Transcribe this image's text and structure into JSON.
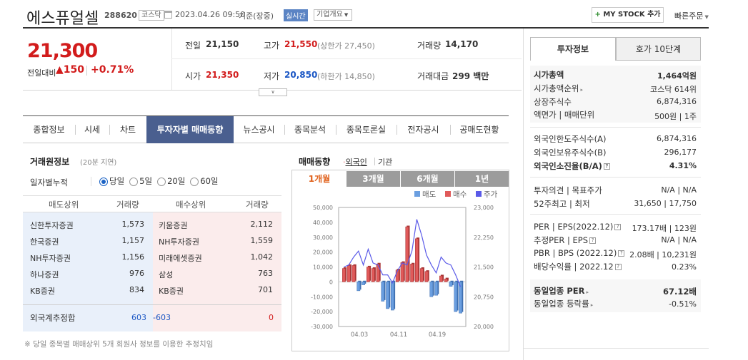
{
  "header": {
    "stock_name": "에스퓨얼셀",
    "code": "288620",
    "market": "코스닥",
    "datetime": "2023.04.26 09:50",
    "basis": "기준(장중)",
    "realtime": "실시간",
    "company_overview": "기업개요",
    "my_stock_label": "MY STOCK 추가",
    "quick_order": "빠른주문"
  },
  "price": {
    "current": "21,300",
    "change_label": "전일대비",
    "change_value": "150",
    "change_pct": "+0.71%",
    "prev_label": "전일",
    "prev": "21,150",
    "high_label": "고가",
    "high": "21,550",
    "upper_limit": "(상한가 27,450)",
    "volume_label": "거래량",
    "volume": "14,170",
    "open_label": "시가",
    "open": "21,350",
    "low_label": "저가",
    "low": "20,850",
    "lower_limit": "(하한가 14,850)",
    "amount_label": "거래대금",
    "amount": "299 백만"
  },
  "nav": {
    "items": [
      "종합정보",
      "시세",
      "차트",
      "투자자별 매매동향",
      "뉴스공시",
      "종목분석",
      "종목토론실",
      "전자공시",
      "공매도현황"
    ],
    "active_index": 3
  },
  "trader": {
    "title": "거래원정보",
    "delay": "(20분 지연)",
    "period_label": "일자별누적",
    "options": [
      "당일",
      "5일",
      "20일",
      "60일"
    ],
    "selected": 0,
    "col_sell": "매도상위",
    "col_sell_vol": "거래량",
    "col_buy": "매수상위",
    "col_buy_vol": "거래량",
    "rows": [
      {
        "sell": "신한투자증권",
        "sell_vol": "1,573",
        "buy": "키움증권",
        "buy_vol": "2,112"
      },
      {
        "sell": "한국증권",
        "sell_vol": "1,157",
        "buy": "NH투자증권",
        "buy_vol": "1,559"
      },
      {
        "sell": "NH투자증권",
        "sell_vol": "1,156",
        "buy": "미래에셋증권",
        "buy_vol": "1,042"
      },
      {
        "sell": "하나증권",
        "sell_vol": "976",
        "buy": "삼성",
        "buy_vol": "763"
      },
      {
        "sell": "KB증권",
        "sell_vol": "834",
        "buy": "KB증권",
        "buy_vol": "701"
      }
    ],
    "foreign_label": "외국계추정합",
    "foreign_sell": "603",
    "foreign_net": "-603",
    "foreign_buy": "0",
    "footnote": "※ 당일 종목별 매매상위 5개 회원사 정보를 이용한 추정치임"
  },
  "flow": {
    "title": "매매동향",
    "opt_foreign": "외국인",
    "opt_inst": "기관",
    "tabs": [
      "1개월",
      "3개월",
      "6개월",
      "1년"
    ],
    "active_tab": 0
  },
  "chart_data": {
    "type": "bar",
    "legend": [
      "매도",
      "매수",
      "주가"
    ],
    "colors": {
      "sell": "#6b9fe0",
      "buy": "#e05a5a",
      "price": "#5a5ae8"
    },
    "x_ticks": [
      "04.03",
      "04.11",
      "04.19"
    ],
    "left_axis": {
      "ticks": [
        "50,000",
        "40,000",
        "30,000",
        "20,000",
        "10,000",
        "0",
        "-10,000",
        "-20,000",
        "-30,000"
      ],
      "range": [
        -30000,
        50000
      ]
    },
    "right_axis": {
      "ticks": [
        "23,000",
        "22,250",
        "21,500",
        "20,750",
        "20,000"
      ],
      "range": [
        20000,
        23000
      ]
    },
    "net_values": [
      9000,
      11000,
      11000,
      -6000,
      -2000,
      10000,
      9000,
      12000,
      -13000,
      -18000,
      -19000,
      8000,
      13000,
      37000,
      12000,
      29000,
      9000,
      7000,
      -10000,
      -9000,
      4000,
      2000,
      -3000,
      -20000,
      -21000
    ],
    "price_values": [
      21500,
      21550,
      21750,
      21900,
      21550,
      21950,
      21600,
      21550,
      21300,
      21300,
      21100,
      21400,
      21600,
      21550,
      21900,
      22700,
      22300,
      21800,
      21550,
      21350,
      21750,
      21600,
      21550,
      21300,
      21000
    ]
  },
  "right_panel": {
    "tabs": [
      "투자정보",
      "호가 10단계"
    ],
    "market_cap_label": "시가총액",
    "market_cap": "1,464억원",
    "rank_label": "시가총액순위",
    "rank": "코스닥 614위",
    "shares_label": "상장주식수",
    "shares": "6,874,316",
    "face_label": "액면가 | 매매단위",
    "face": "500원 | 1주",
    "foreign_limit_label": "외국인한도주식수(A)",
    "foreign_limit": "6,874,316",
    "foreign_hold_label": "외국인보유주식수(B)",
    "foreign_hold": "296,177",
    "foreign_ratio_label": "외국인소진율(B/A)",
    "foreign_ratio": "4.31%",
    "opinion_label": "투자의견 | 목표주가",
    "opinion": "N/A | N/A",
    "week52_label": "52주최고 | 최저",
    "week52": "31,650 | 17,750",
    "per_label": "PER | EPS(2022.12)",
    "per": "173.17배 | 123원",
    "est_per_label": "추정PER | EPS",
    "est_per": "N/A | N/A",
    "pbr_label": "PBR | BPS (2022.12)",
    "pbr": "2.08배 | 10,231원",
    "div_label": "배당수익률 | 2022.12",
    "div": "0.23%",
    "sector_per_label": "동일업종 PER",
    "sector_per": "67.12배",
    "sector_rate_label": "동일업종 등락률",
    "sector_rate": "-0.51%"
  }
}
